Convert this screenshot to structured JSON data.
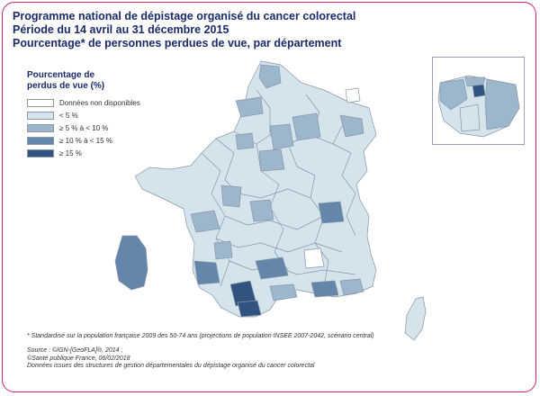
{
  "title": {
    "line1": "Programme national de dépistage organisé du cancer colorectal",
    "line2": "Période du 14 avril au 31 décembre 2015",
    "line3": "Pourcentage* de personnes perdues de vue, par département"
  },
  "legend": {
    "title": "Pourcentage de perdus de vue (%)",
    "items": [
      {
        "label": "Données non disponibles",
        "color": "#ffffff"
      },
      {
        "label": "< 5 %",
        "color": "#d4e3ec"
      },
      {
        "label": "≥ 5 % à < 10 %",
        "color": "#9cb6cb"
      },
      {
        "label": "≥ 10 % à < 15 %",
        "color": "#6386aa"
      },
      {
        "label": "≥ 15 %",
        "color": "#30537f"
      }
    ]
  },
  "note": "* Standardisé sur la population française 2009 des 50-74 ans (projections de population INSEE 2007-2042, scénario central)",
  "source": {
    "line1": "Source : ©IGN-[GeoFLA]®, 2014 ;",
    "line2": "©Santé publique France, 06/02/2018",
    "line3": "Données issues des structures de gestion départementales du dépistage organisé du cancer colorectal"
  },
  "colors": {
    "frame": "#d61f6e",
    "title": "#1a2b6b",
    "border": "#8a97a8"
  }
}
